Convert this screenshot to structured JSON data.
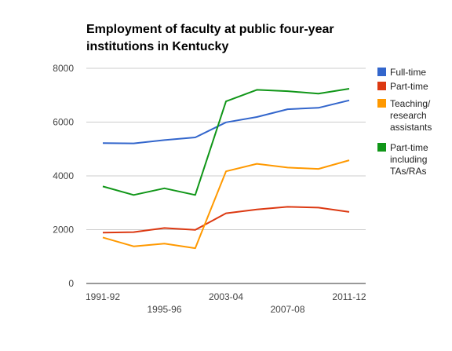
{
  "chart_data": {
    "type": "line",
    "title_lines": [
      "Employment of faculty at public four-year",
      "institutions in Kentucky"
    ],
    "xlabel": "",
    "ylabel": "",
    "categories": [
      "1991-92",
      "",
      "1995-96",
      "",
      "2003-04",
      "",
      "2007-08",
      "",
      "2011-12"
    ],
    "x_tick_labels": [
      {
        "index": 0,
        "text": "1991-92",
        "row": 1
      },
      {
        "index": 2,
        "text": "1995-96",
        "row": 2
      },
      {
        "index": 4,
        "text": "2003-04",
        "row": 1
      },
      {
        "index": 6,
        "text": "2007-08",
        "row": 2
      },
      {
        "index": 8,
        "text": "2011-12",
        "row": 1
      }
    ],
    "ylim": [
      0,
      8000
    ],
    "y_ticks": [
      0,
      2000,
      4000,
      6000,
      8000
    ],
    "grid": true,
    "legend_position": "right",
    "series": [
      {
        "name": "Full-time",
        "legend_lines": [
          "Full-time"
        ],
        "color": "#3366cc",
        "values": [
          5220,
          5210,
          5330,
          5430,
          5990,
          6190,
          6480,
          6530,
          6810
        ]
      },
      {
        "name": "Part-time",
        "legend_lines": [
          "Part-time"
        ],
        "color": "#dc3912",
        "values": [
          1890,
          1910,
          2060,
          1990,
          2610,
          2750,
          2850,
          2820,
          2660
        ]
      },
      {
        "name": "Teaching/ research assistants",
        "legend_lines": [
          "Teaching/",
          "research",
          "assistants"
        ],
        "color": "#ff9900",
        "values": [
          1710,
          1380,
          1480,
          1310,
          4170,
          4450,
          4310,
          4260,
          4580
        ]
      },
      {
        "name": "Part-time including TAs/RAs",
        "legend_lines": [
          "Part-time",
          "including",
          "TAs/RAs"
        ],
        "color": "#109618",
        "values": [
          3610,
          3290,
          3540,
          3290,
          6770,
          7200,
          7150,
          7060,
          7240
        ]
      }
    ]
  }
}
